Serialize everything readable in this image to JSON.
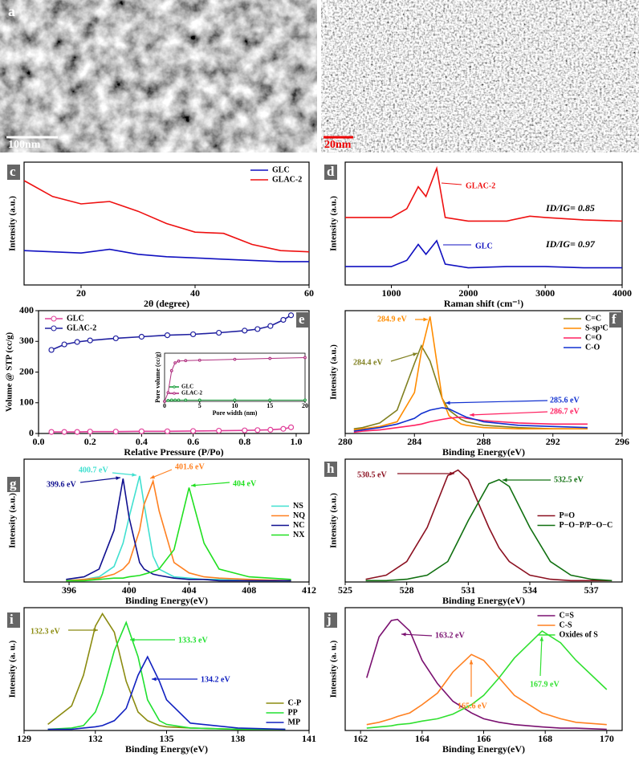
{
  "images": [
    {
      "label": "a",
      "scale_bar": "100nm"
    },
    {
      "label": "b",
      "scale_bar": "20nm"
    }
  ],
  "chart_data": [
    {
      "type": "line",
      "label": "c",
      "x_label": "2θ (degree)",
      "y_label": "Intensity (a.u.)",
      "xlim": [
        10,
        60
      ],
      "xticks": [
        20,
        40,
        60
      ],
      "ylim": [
        0,
        1
      ],
      "legend": "upper right",
      "x": [
        10,
        15,
        20,
        25,
        30,
        35,
        40,
        45,
        50,
        55,
        60
      ],
      "series": [
        {
          "name": "GLC",
          "color": "#1010c0",
          "values": [
            0.28,
            0.27,
            0.26,
            0.29,
            0.25,
            0.23,
            0.22,
            0.21,
            0.2,
            0.19,
            0.19
          ]
        },
        {
          "name": "GLAC-2",
          "color": "#ee1010",
          "values": [
            0.85,
            0.72,
            0.66,
            0.68,
            0.6,
            0.5,
            0.43,
            0.42,
            0.33,
            0.28,
            0.27
          ]
        }
      ]
    },
    {
      "type": "line",
      "label": "d",
      "x_label": "Raman shift (cm⁻¹)",
      "y_label": "Intensity (a.u.)",
      "xlim": [
        400,
        4000
      ],
      "xticks": [
        1000,
        2000,
        3000,
        4000
      ],
      "ylim": [
        0,
        1
      ],
      "legend": "inline",
      "x": [
        400,
        1000,
        1200,
        1350,
        1450,
        1590,
        1700,
        2000,
        2500,
        2800,
        3000,
        3500,
        4000
      ],
      "series": [
        {
          "name": "GLAC-2",
          "color": "#ee1010",
          "values": [
            0.55,
            0.55,
            0.62,
            0.8,
            0.72,
            0.95,
            0.55,
            0.52,
            0.52,
            0.56,
            0.55,
            0.53,
            0.52
          ]
        },
        {
          "name": "GLC",
          "color": "#1010c0",
          "values": [
            0.15,
            0.15,
            0.2,
            0.33,
            0.25,
            0.36,
            0.17,
            0.14,
            0.15,
            0.15,
            0.15,
            0.14,
            0.14
          ]
        }
      ],
      "annotations": [
        "ID/IG= 0.85",
        "ID/IG= 0.97"
      ]
    },
    {
      "type": "line",
      "label": "e",
      "x_label": "Relative Pressure (P/Po)",
      "y_label": "Volume @ STP (cc/g)",
      "xlim": [
        0,
        1.05
      ],
      "xticks": [
        {
          "value": 0,
          "label": "0.0"
        },
        0.2,
        0.4,
        0.6,
        0.8,
        {
          "value": 1,
          "label": "1.0"
        }
      ],
      "ylim": [
        0,
        400
      ],
      "yticks": [
        0,
        100,
        200,
        300,
        400
      ],
      "legend": "upper left",
      "markers": true,
      "x": [
        0.05,
        0.1,
        0.15,
        0.2,
        0.3,
        0.4,
        0.5,
        0.6,
        0.7,
        0.8,
        0.85,
        0.9,
        0.95,
        0.98
      ],
      "series": [
        {
          "name": "GLC",
          "color": "#e0409a",
          "values": [
            5,
            5,
            5,
            6,
            6,
            7,
            7,
            8,
            9,
            10,
            11,
            12,
            15,
            20
          ]
        },
        {
          "name": "GLAC-2",
          "color": "#2020a0",
          "values": [
            272,
            290,
            298,
            303,
            310,
            315,
            320,
            323,
            328,
            335,
            340,
            350,
            370,
            385
          ]
        }
      ]
    },
    {
      "type": "line",
      "x_label": "Pore width (nm)",
      "y_label": "Pore volume (cc/g)",
      "xlim": [
        0,
        20
      ],
      "xticks": [
        0,
        5,
        10,
        15,
        20
      ],
      "ylim": [
        0,
        1.1
      ],
      "legend": "lower left",
      "markers": true,
      "x": [
        0,
        0.5,
        1,
        1.5,
        2,
        3,
        5,
        10,
        15,
        20
      ],
      "series": [
        {
          "name": "GLC",
          "color": "#20a040",
          "values": [
            0,
            0.02,
            0.03,
            0.03,
            0.03,
            0.03,
            0.03,
            0.03,
            0.03,
            0.03
          ]
        },
        {
          "name": "GLAC-2",
          "color": "#b03080",
          "values": [
            0,
            0.2,
            0.7,
            0.88,
            0.92,
            0.93,
            0.94,
            0.96,
            0.98,
            1.0
          ]
        }
      ]
    },
    {
      "type": "line",
      "label": "f",
      "x_label": "Binding Energy(eV)",
      "y_label": "Intensity (a.u.)",
      "xlim": [
        280,
        296
      ],
      "xticks": [
        280,
        284,
        288,
        292,
        296
      ],
      "ylim": [
        0,
        1.05
      ],
      "legend": "upper right",
      "x": [
        280.5,
        281,
        282,
        283,
        284,
        284.4,
        284.9,
        285.6,
        286,
        286.7,
        287,
        288,
        290,
        292,
        294
      ],
      "series": [
        {
          "name": "C=C",
          "color": "#808020",
          "values": [
            0.04,
            0.05,
            0.09,
            0.2,
            0.6,
            0.75,
            0.62,
            0.3,
            0.2,
            0.12,
            0.1,
            0.07,
            0.05,
            0.04,
            0.04
          ]
        },
        {
          "name": "S-sp³C",
          "color": "#ff8c00",
          "values": [
            0.03,
            0.04,
            0.06,
            0.1,
            0.35,
            0.7,
            1.0,
            0.3,
            0.15,
            0.08,
            0.07,
            0.05,
            0.04,
            0.04,
            0.04
          ]
        },
        {
          "name": "C=O",
          "color": "#ff2060",
          "values": [
            0.01,
            0.02,
            0.03,
            0.05,
            0.07,
            0.08,
            0.1,
            0.12,
            0.13,
            0.14,
            0.13,
            0.11,
            0.09,
            0.08,
            0.08
          ]
        },
        {
          "name": "C-O",
          "color": "#1030d0",
          "values": [
            0.02,
            0.03,
            0.05,
            0.08,
            0.13,
            0.17,
            0.2,
            0.22,
            0.21,
            0.16,
            0.14,
            0.1,
            0.07,
            0.06,
            0.05
          ]
        }
      ],
      "annotations": [
        "284.9 eV",
        "284.4 eV",
        "285.6 eV",
        "286.7 eV"
      ]
    },
    {
      "type": "line",
      "label": "g",
      "x_label": "Binding Energy(eV)",
      "y_label": "Intensity (a.u.)",
      "xlim": [
        393,
        412
      ],
      "xticks": [
        396,
        400,
        404,
        408,
        412
      ],
      "ylim": [
        0,
        0.95
      ],
      "legend": "center right",
      "x": [
        395.8,
        397,
        398,
        399,
        399.6,
        400,
        400.7,
        401,
        401.6,
        402,
        403,
        404,
        405,
        406,
        408,
        410.8
      ],
      "series": [
        {
          "name": "NS",
          "color": "#40e0d0",
          "values": [
            0.01,
            0.02,
            0.04,
            0.12,
            0.3,
            0.5,
            0.82,
            0.6,
            0.2,
            0.1,
            0.04,
            0.03,
            0.02,
            0.02,
            0.01,
            0.01
          ]
        },
        {
          "name": "NQ",
          "color": "#ff8020",
          "values": [
            0.01,
            0.02,
            0.03,
            0.06,
            0.1,
            0.15,
            0.4,
            0.6,
            0.78,
            0.55,
            0.15,
            0.07,
            0.04,
            0.03,
            0.02,
            0.01
          ]
        },
        {
          "name": "NC",
          "color": "#101090",
          "values": [
            0.02,
            0.04,
            0.1,
            0.4,
            0.8,
            0.5,
            0.15,
            0.1,
            0.06,
            0.05,
            0.03,
            0.02,
            0.02,
            0.01,
            0.01,
            0.01
          ]
        },
        {
          "name": "NX",
          "color": "#20e020",
          "values": [
            0.01,
            0.01,
            0.02,
            0.03,
            0.03,
            0.04,
            0.05,
            0.06,
            0.08,
            0.1,
            0.25,
            0.73,
            0.3,
            0.1,
            0.04,
            0.02
          ]
        }
      ],
      "annotations": [
        "400.7 eV",
        "401.6 eV",
        "399.6 eV",
        "404 eV"
      ]
    },
    {
      "type": "line",
      "label": "h",
      "x_label": "Binding Energy(eV)",
      "y_label": "Intensity (a.u.)",
      "xlim": [
        525,
        538.5
      ],
      "xticks": [
        525,
        528,
        531,
        534,
        537
      ],
      "ylim": [
        0,
        0.9
      ],
      "legend": "center right",
      "x": [
        526,
        527,
        528,
        529,
        530,
        530.5,
        531,
        532,
        532.5,
        533,
        534,
        535,
        536,
        537,
        538
      ],
      "series": [
        {
          "name": "P=O",
          "color": "#8b1020",
          "values": [
            0.02,
            0.05,
            0.15,
            0.4,
            0.78,
            0.82,
            0.75,
            0.4,
            0.25,
            0.15,
            0.05,
            0.02,
            0.01,
            0.01,
            0.01
          ]
        },
        {
          "name": "P−O−P/P−O−C",
          "color": "#107010",
          "values": [
            0.01,
            0.01,
            0.02,
            0.05,
            0.15,
            0.3,
            0.45,
            0.72,
            0.75,
            0.7,
            0.4,
            0.15,
            0.05,
            0.02,
            0.01
          ]
        }
      ],
      "annotations": [
        "530.5 eV",
        "532.5 eV"
      ]
    },
    {
      "type": "line",
      "label": "i",
      "x_label": "Binding Energy(eV)",
      "y_label": "Intensity (a. u.)",
      "xlim": [
        129,
        141
      ],
      "xticks": [
        129,
        132,
        135,
        138,
        141
      ],
      "ylim": [
        0,
        1.0
      ],
      "legend": "lower right",
      "x": [
        130,
        131,
        131.5,
        132,
        132.3,
        132.8,
        133.3,
        133.8,
        134.2,
        134.7,
        135,
        136,
        138,
        140
      ],
      "series": [
        {
          "name": "C-P",
          "color": "#8b8b10",
          "values": [
            0.05,
            0.2,
            0.45,
            0.85,
            0.95,
            0.8,
            0.4,
            0.15,
            0.08,
            0.04,
            0.03,
            0.02,
            0.01,
            0.01
          ]
        },
        {
          "name": "PP",
          "color": "#20e030",
          "values": [
            0.01,
            0.02,
            0.04,
            0.15,
            0.3,
            0.65,
            0.88,
            0.6,
            0.25,
            0.08,
            0.05,
            0.02,
            0.01,
            0.01
          ]
        },
        {
          "name": "MP",
          "color": "#1020c0",
          "values": [
            0.01,
            0.01,
            0.02,
            0.03,
            0.04,
            0.08,
            0.18,
            0.45,
            0.6,
            0.4,
            0.25,
            0.06,
            0.02,
            0.01
          ]
        }
      ],
      "annotations": [
        "132.3 eV",
        "133.3 eV",
        "134.2 eV"
      ]
    },
    {
      "type": "line",
      "label": "j",
      "x_label": "Binding Energy(eV)",
      "y_label": "Intensity (a. u.)",
      "xlim": [
        161.5,
        170.5
      ],
      "xticks": [
        162,
        164,
        166,
        168,
        170
      ],
      "ylim": [
        0,
        1.05
      ],
      "legend": "upper right",
      "x": [
        162.2,
        162.6,
        163,
        163.2,
        163.6,
        164,
        164.5,
        165,
        165.6,
        166,
        166.5,
        167,
        167.9,
        168.5,
        169,
        170
      ],
      "series": [
        {
          "name": "C=S",
          "color": "#7a1070",
          "values": [
            0.45,
            0.8,
            0.94,
            0.95,
            0.85,
            0.6,
            0.4,
            0.25,
            0.15,
            0.1,
            0.07,
            0.05,
            0.03,
            0.02,
            0.02,
            0.01
          ]
        },
        {
          "name": "C-S",
          "color": "#ff8020",
          "values": [
            0.05,
            0.07,
            0.1,
            0.12,
            0.15,
            0.22,
            0.32,
            0.5,
            0.65,
            0.6,
            0.45,
            0.3,
            0.15,
            0.1,
            0.07,
            0.05
          ]
        },
        {
          "name": "Oxides of S",
          "color": "#30e030",
          "values": [
            0.02,
            0.03,
            0.04,
            0.05,
            0.06,
            0.08,
            0.1,
            0.14,
            0.22,
            0.3,
            0.45,
            0.62,
            0.85,
            0.75,
            0.6,
            0.35
          ]
        }
      ],
      "annotations": [
        "163.2 eV",
        "165.6 eV",
        "167.9 eV"
      ]
    }
  ]
}
